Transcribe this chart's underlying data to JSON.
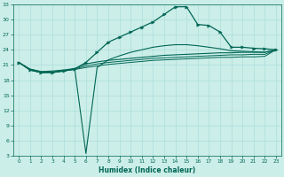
{
  "xlabel": "Humidex (Indice chaleur)",
  "bg_color": "#cceee8",
  "grid_color": "#aaddda",
  "line_color": "#006655",
  "xlim": [
    -0.5,
    23.5
  ],
  "ylim": [
    3,
    33
  ],
  "xticks": [
    0,
    1,
    2,
    3,
    4,
    5,
    6,
    7,
    8,
    9,
    10,
    11,
    12,
    13,
    14,
    15,
    16,
    17,
    18,
    19,
    20,
    21,
    22,
    23
  ],
  "yticks": [
    3,
    6,
    9,
    12,
    15,
    18,
    21,
    24,
    27,
    30,
    33
  ],
  "x": [
    0,
    1,
    2,
    3,
    4,
    5,
    6,
    7,
    8,
    9,
    10,
    11,
    12,
    13,
    14,
    15,
    16,
    17,
    18,
    19,
    20,
    21,
    22,
    23
  ],
  "line_main": [
    21.5,
    20.0,
    19.5,
    19.5,
    19.8,
    20.2,
    21.5,
    23.5,
    25.5,
    26.5,
    27.5,
    28.5,
    29.5,
    31.0,
    32.5,
    32.5,
    29.0,
    28.8,
    27.5,
    24.5,
    24.5,
    24.3,
    24.2,
    24.0
  ],
  "line_dip": [
    21.5,
    20.0,
    19.5,
    19.5,
    19.8,
    20.2,
    3.5,
    20.5,
    22.0,
    22.8,
    23.5,
    24.0,
    24.5,
    24.8,
    25.0,
    25.0,
    24.8,
    24.5,
    24.2,
    23.8,
    23.7,
    23.6,
    23.5,
    24.0
  ],
  "line_flat1": [
    21.5,
    20.2,
    19.7,
    19.8,
    20.0,
    20.3,
    21.2,
    21.6,
    21.9,
    22.1,
    22.3,
    22.5,
    22.7,
    22.9,
    23.0,
    23.1,
    23.2,
    23.3,
    23.4,
    23.4,
    23.5,
    23.5,
    23.5,
    24.0
  ],
  "line_flat2": [
    21.5,
    20.1,
    19.6,
    19.6,
    19.9,
    20.2,
    20.8,
    21.2,
    21.5,
    21.7,
    21.9,
    22.1,
    22.3,
    22.4,
    22.5,
    22.6,
    22.7,
    22.8,
    22.9,
    23.0,
    23.0,
    23.1,
    23.1,
    24.0
  ],
  "line_flat3": [
    21.5,
    20.0,
    19.5,
    19.6,
    19.8,
    20.1,
    20.5,
    20.8,
    21.1,
    21.3,
    21.5,
    21.7,
    21.9,
    22.0,
    22.1,
    22.2,
    22.3,
    22.4,
    22.5,
    22.5,
    22.6,
    22.6,
    22.7,
    24.0
  ]
}
